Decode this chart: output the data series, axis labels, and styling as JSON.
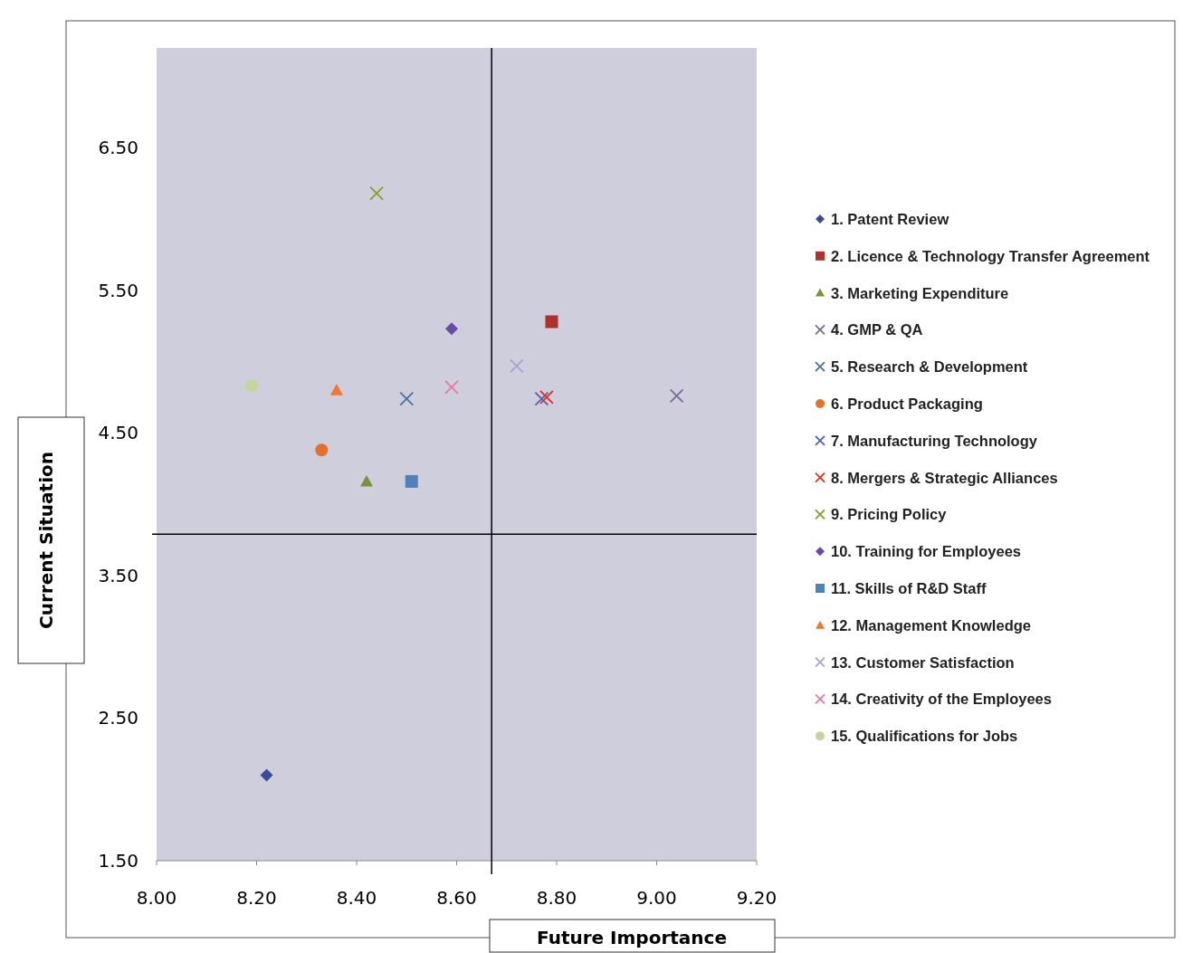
{
  "chart_data": {
    "type": "scatter",
    "xlabel": "Future Importance",
    "ylabel": "Current Situation",
    "xlim": [
      8.0,
      9.2
    ],
    "ylim": [
      1.5,
      7.2
    ],
    "xticks": [
      {
        "value": 8.0,
        "label": "8.00"
      },
      {
        "value": 8.2,
        "label": "8.20"
      },
      {
        "value": 8.4,
        "label": "8.40"
      },
      {
        "value": 8.6,
        "label": "8.60"
      },
      {
        "value": 8.8,
        "label": "8.80"
      },
      {
        "value": 9.0,
        "label": "9.00"
      },
      {
        "value": 9.2,
        "label": "9.20"
      }
    ],
    "yticks": [
      {
        "value": 1.5,
        "label": "1.50"
      },
      {
        "value": 2.5,
        "label": "2.50"
      },
      {
        "value": 3.5,
        "label": "3.50"
      },
      {
        "value": 4.5,
        "label": "4.50"
      },
      {
        "value": 5.5,
        "label": "5.50"
      },
      {
        "value": 6.5,
        "label": "6.50"
      }
    ],
    "grid": false,
    "legend": "right",
    "ref_lines": [
      {
        "axis": "x",
        "value": 8.67,
        "color": "#000000"
      },
      {
        "axis": "y",
        "value": 3.79,
        "color": "#000000"
      }
    ],
    "series": [
      {
        "name": "1. Patent Review",
        "color": "#3c4a9c",
        "marker": "diamond",
        "x": [
          8.22
        ],
        "values": [
          2.1
        ]
      },
      {
        "name": "2. Licence & Technology Transfer Agreement",
        "color": "#b0302a",
        "marker": "square",
        "x": [
          8.79
        ],
        "values": [
          5.28
        ]
      },
      {
        "name": "3. Marketing Expenditure",
        "color": "#77933c",
        "marker": "triangle",
        "x": [
          8.42
        ],
        "values": [
          4.16
        ]
      },
      {
        "name": "4. GMP & QA",
        "color": "#7a6a96",
        "marker": "cross",
        "x": [
          9.04
        ],
        "values": [
          4.76
        ]
      },
      {
        "name": "5. Research & Development",
        "color": "#4f6e9e",
        "marker": "cross",
        "x": [
          8.5
        ],
        "values": [
          4.74
        ]
      },
      {
        "name": "6. Product Packaging",
        "color": "#e4702a",
        "marker": "circle",
        "x": [
          8.33
        ],
        "values": [
          4.38
        ]
      },
      {
        "name": "7. Manufacturing Technology",
        "color": "#5060c0",
        "marker": "cross",
        "x": [
          8.77
        ],
        "values": [
          4.74
        ]
      },
      {
        "name": "8. Mergers & Strategic Alliances",
        "color": "#e03020",
        "marker": "cross",
        "x": [
          8.78
        ],
        "values": [
          4.75
        ]
      },
      {
        "name": "9.  Pricing Policy",
        "color": "#8a9a30",
        "marker": "cross",
        "x": [
          8.44
        ],
        "values": [
          6.18
        ]
      },
      {
        "name": "10. Training for Employees",
        "color": "#6a4aa8",
        "marker": "diamond",
        "x": [
          8.59
        ],
        "values": [
          5.23
        ]
      },
      {
        "name": "11. Skills of R&D Staff",
        "color": "#4f81bd",
        "marker": "square",
        "x": [
          8.51
        ],
        "values": [
          4.16
        ]
      },
      {
        "name": "12.  Management Knowledge",
        "color": "#f07830",
        "marker": "triangle",
        "x": [
          8.36
        ],
        "values": [
          4.8
        ]
      },
      {
        "name": "13.  Customer Satisfaction",
        "color": "#a8a0d0",
        "marker": "cross",
        "x": [
          8.72
        ],
        "values": [
          4.97
        ]
      },
      {
        "name": "14.  Creativity of the Employees",
        "color": "#e87a9a",
        "marker": "cross",
        "x": [
          8.59
        ],
        "values": [
          4.82
        ]
      },
      {
        "name": "15.  Qualifications for Jobs",
        "color": "#c3d69b",
        "marker": "circle",
        "x": [
          8.19
        ],
        "values": [
          4.83
        ]
      }
    ]
  }
}
